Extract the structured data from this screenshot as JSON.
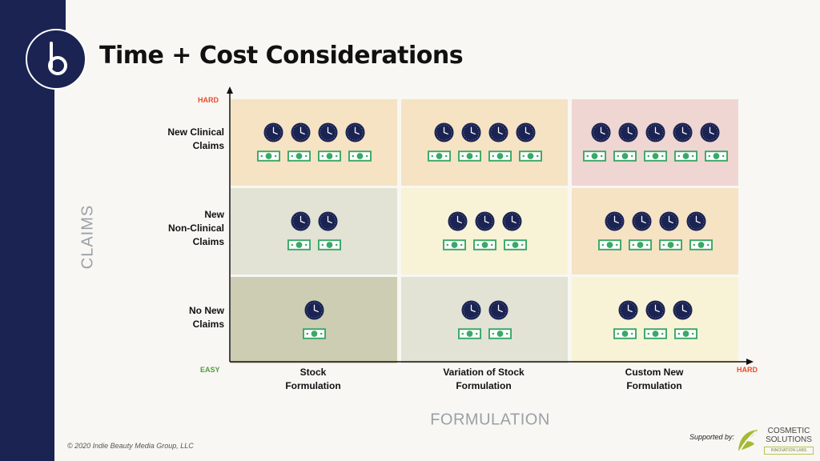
{
  "slide": {
    "title": "Time + Cost Considerations",
    "copyright": "© 2020 Indie Beauty Media Group, LLC",
    "supported_by": "Supported by:",
    "sponsor": {
      "name_line1": "COSMETIC",
      "name_line2": "SOLUTIONS",
      "tagline": "INNOVATION LABS"
    }
  },
  "axes": {
    "y_title": "CLAIMS",
    "x_title": "FORMULATION",
    "y_top": "HARD",
    "origin": "EASY",
    "x_end": "HARD"
  },
  "colors": {
    "hard": "#e74c2b",
    "easy": "#4f9d3c",
    "clock": "#1a2352",
    "cash": "#3aa867"
  },
  "icons": {
    "time": "clock-icon",
    "cost": "cash-icon"
  },
  "rows": [
    {
      "label_line1": "New Clinical",
      "label_line2": "Claims"
    },
    {
      "label_line1": "New",
      "label_line2": "Non-Clinical",
      "label_line3": "Claims"
    },
    {
      "label_line1": "No New",
      "label_line2": "Claims"
    }
  ],
  "columns": [
    {
      "label_line1": "Stock",
      "label_line2": "Formulation"
    },
    {
      "label_line1": "Variation of Stock",
      "label_line2": "Formulation"
    },
    {
      "label_line1": "Custom New",
      "label_line2": "Formulation"
    }
  ],
  "chart_data": {
    "type": "heatmap",
    "x_categories": [
      "Stock Formulation",
      "Variation of Stock Formulation",
      "Custom New Formulation"
    ],
    "y_categories": [
      "New Clinical Claims",
      "New Non-Clinical Claims",
      "No New Claims"
    ],
    "cells": [
      {
        "row": 0,
        "col": 0,
        "time_icons": 4,
        "cost_icons": 4,
        "color": "#f5e3c4"
      },
      {
        "row": 0,
        "col": 1,
        "time_icons": 4,
        "cost_icons": 4,
        "color": "#f5e3c4"
      },
      {
        "row": 0,
        "col": 2,
        "time_icons": 5,
        "cost_icons": 5,
        "color": "#efd6d3"
      },
      {
        "row": 1,
        "col": 0,
        "time_icons": 2,
        "cost_icons": 2,
        "color": "#e2e2d5"
      },
      {
        "row": 1,
        "col": 1,
        "time_icons": 3,
        "cost_icons": 3,
        "color": "#f8f3d6"
      },
      {
        "row": 1,
        "col": 2,
        "time_icons": 4,
        "cost_icons": 4,
        "color": "#f5e3c4"
      },
      {
        "row": 2,
        "col": 0,
        "time_icons": 1,
        "cost_icons": 1,
        "color": "#cccdb2"
      },
      {
        "row": 2,
        "col": 1,
        "time_icons": 2,
        "cost_icons": 2,
        "color": "#e2e2d5"
      },
      {
        "row": 2,
        "col": 2,
        "time_icons": 3,
        "cost_icons": 3,
        "color": "#f8f3d6"
      }
    ]
  }
}
